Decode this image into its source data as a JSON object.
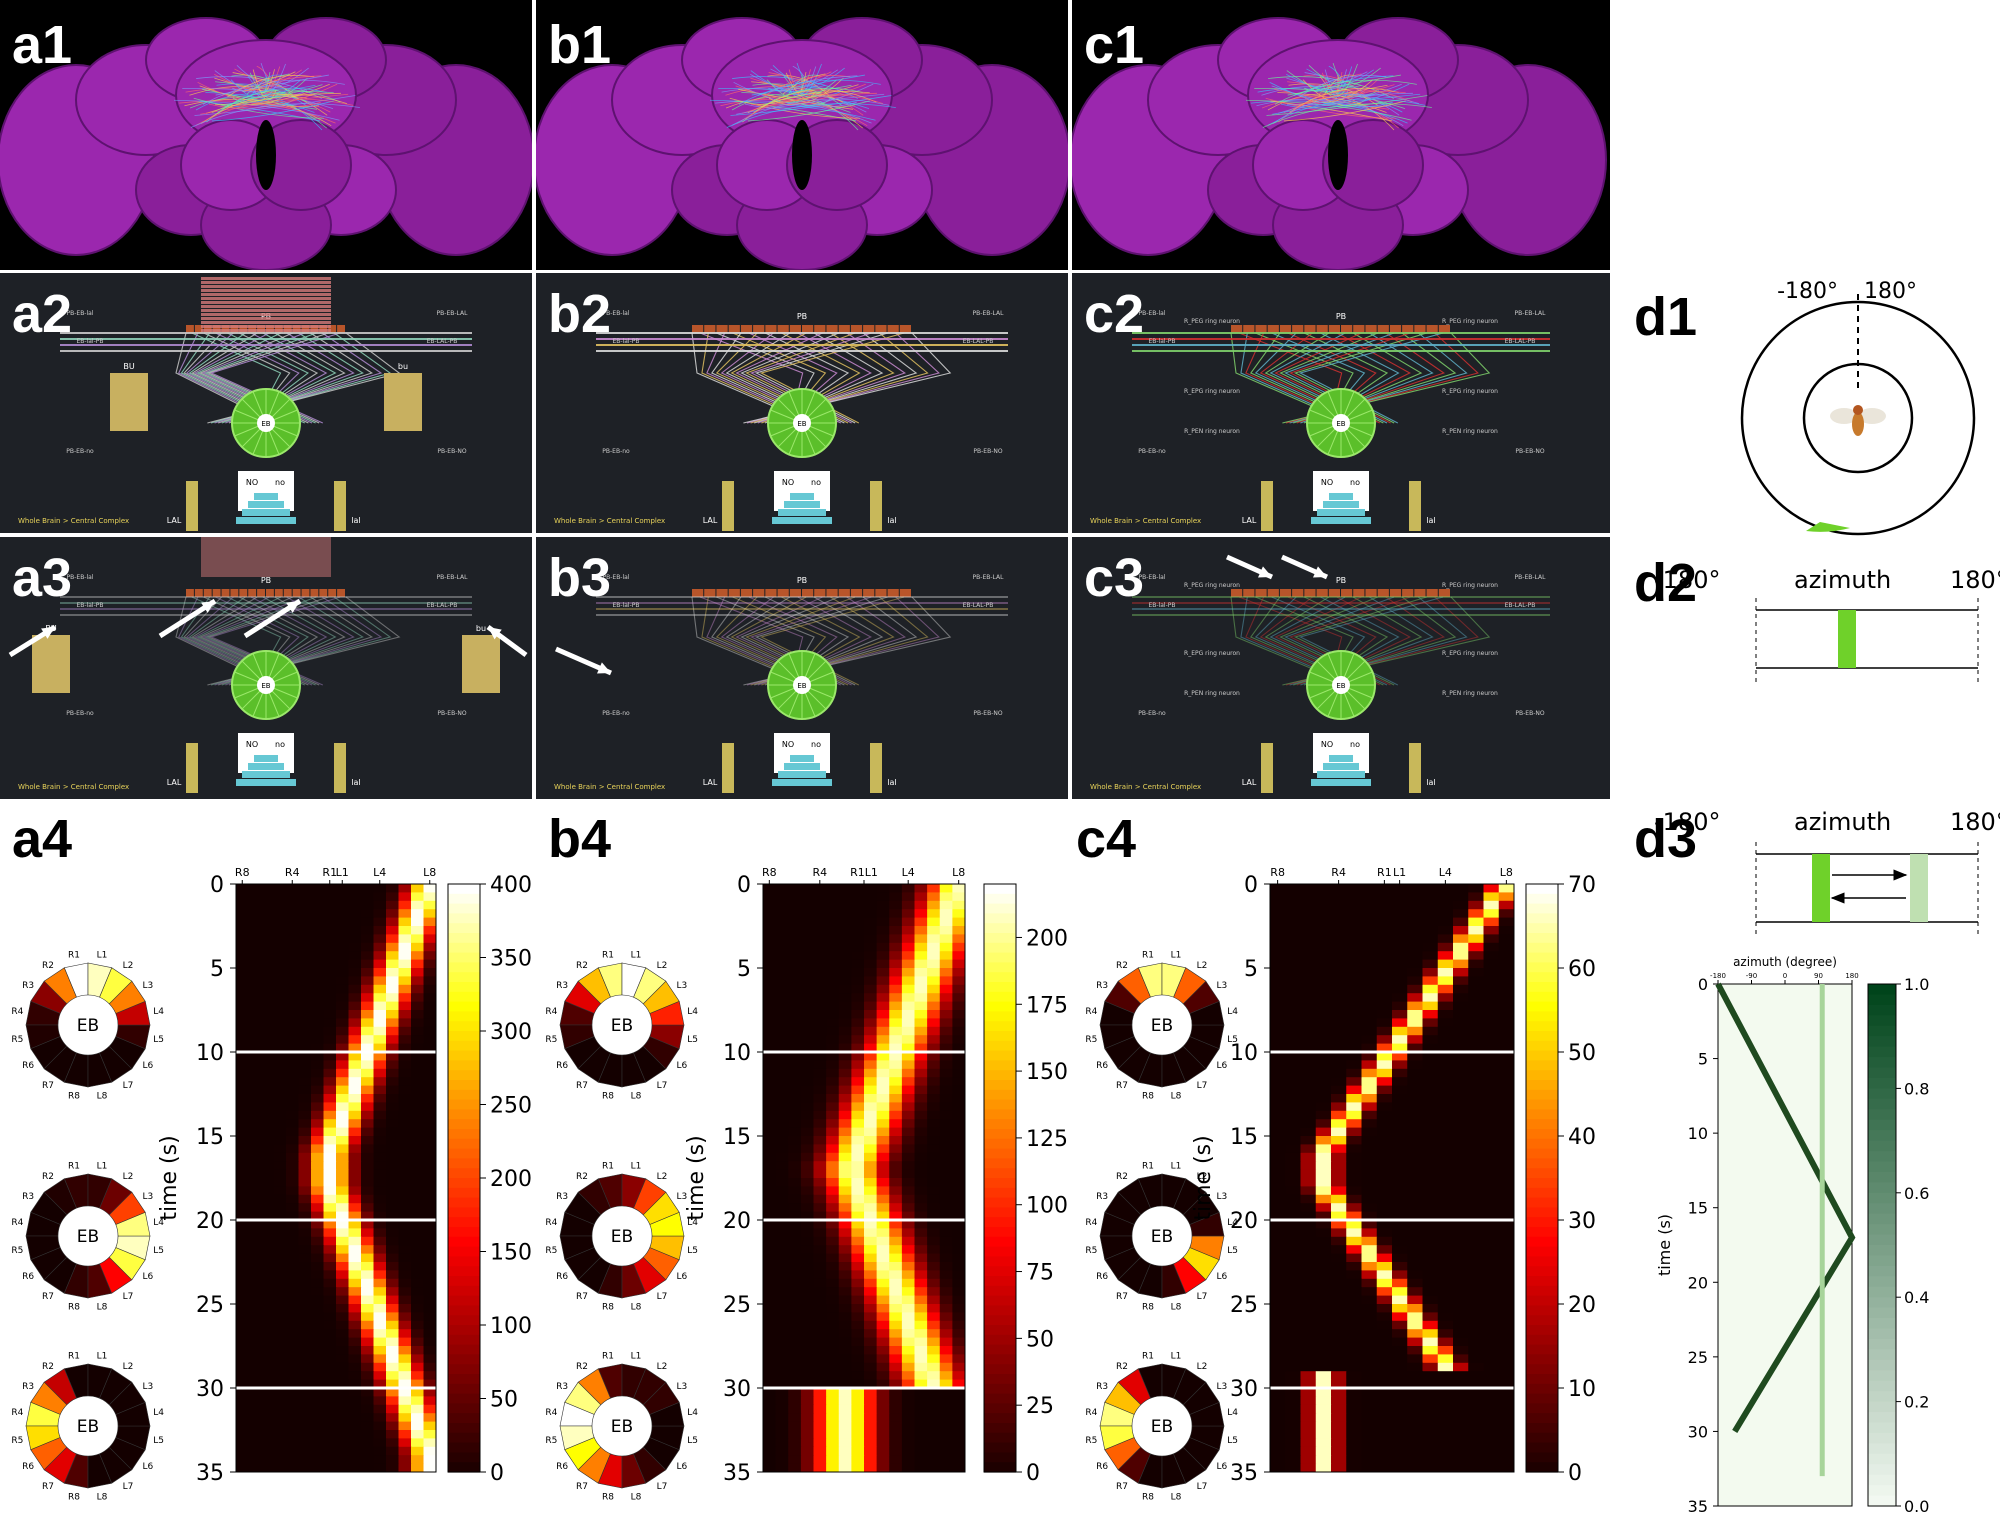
{
  "panels": {
    "a1": "a1",
    "b1": "b1",
    "c1": "c1",
    "a2": "a2",
    "b2": "b2",
    "c2": "c2",
    "a3": "a3",
    "b3": "b3",
    "c3": "c3",
    "a4": "a4",
    "b4": "b4",
    "c4": "c4",
    "d1": "d1",
    "d2": "d2",
    "d3": "d3"
  },
  "circuit": {
    "breadcrumb": "Whole Brain > Central Complex",
    "labels": {
      "PB": "PB",
      "EB": "EB",
      "NO": "NO",
      "no": "no",
      "LAL": "LAL",
      "lal": "lal",
      "BU": "BU",
      "bu": "bu",
      "PB_EB_lal": "PB-EB-lal",
      "PB_EB_LAL": "PB-EB-LAL",
      "PB_local": "PB local",
      "PB_EB_no": "PB-EB-no",
      "PB_EB_NO": "PB-EB-NO",
      "EB_LAL_PB": "EB-LAL-PB",
      "EB_lal_PB": "EB-lal-PB",
      "R_PEG": "R_PEG ring neuron",
      "R_EPG": "R_EPG ring neuron",
      "R_PEN": "R_PEN ring neuron"
    }
  },
  "eb_rings": {
    "center_label": "EB",
    "segments": [
      "R1",
      "R2",
      "R3",
      "R4",
      "R5",
      "R6",
      "R7",
      "R8",
      "L8",
      "L7",
      "L6",
      "L5",
      "L4",
      "L3",
      "L2",
      "L1"
    ],
    "a4": [
      [
        1.0,
        0.6,
        0.2,
        0.05,
        0.02,
        0.0,
        0.0,
        0.0,
        0.0,
        0.0,
        0.0,
        0.05,
        0.3,
        0.6,
        0.85,
        0.95
      ],
      [
        0.05,
        0.02,
        0.0,
        0.0,
        0.0,
        0.0,
        0.0,
        0.05,
        0.1,
        0.4,
        0.85,
        0.95,
        0.9,
        0.5,
        0.15,
        0.05
      ],
      [
        0.0,
        0.3,
        0.6,
        0.85,
        0.75,
        0.55,
        0.35,
        0.1,
        0.0,
        0.0,
        0.0,
        0.0,
        0.0,
        0.0,
        0.0,
        0.0
      ]
    ],
    "b4": [
      [
        0.9,
        0.7,
        0.35,
        0.1,
        0.05,
        0.0,
        0.0,
        0.0,
        0.0,
        0.0,
        0.05,
        0.2,
        0.45,
        0.7,
        0.9,
        1.0
      ],
      [
        0.1,
        0.05,
        0.0,
        0.0,
        0.0,
        0.0,
        0.0,
        0.05,
        0.15,
        0.35,
        0.55,
        0.7,
        0.8,
        0.75,
        0.5,
        0.2
      ],
      [
        0.1,
        0.6,
        0.9,
        1.0,
        0.95,
        0.8,
        0.6,
        0.35,
        0.15,
        0.05,
        0.0,
        0.0,
        0.0,
        0.05,
        0.05,
        0.05
      ]
    ],
    "c4": [
      [
        0.9,
        0.55,
        0.1,
        0.0,
        0.0,
        0.0,
        0.0,
        0.0,
        0.0,
        0.0,
        0.0,
        0.0,
        0.0,
        0.1,
        0.55,
        0.9
      ],
      [
        0.0,
        0.0,
        0.0,
        0.0,
        0.0,
        0.0,
        0.0,
        0.0,
        0.05,
        0.4,
        0.75,
        0.6,
        0.05,
        0.0,
        0.0,
        0.0
      ],
      [
        0.0,
        0.35,
        0.7,
        0.9,
        0.85,
        0.55,
        0.1,
        0.0,
        0.0,
        0.0,
        0.0,
        0.0,
        0.0,
        0.0,
        0.0,
        0.0
      ]
    ]
  },
  "d1": {
    "left_angle": "-180°",
    "right_angle": "180°"
  },
  "d2": {
    "left": "-180°",
    "title": "azimuth",
    "right": "180°"
  },
  "d3": {
    "left": "-180°",
    "title": "azimuth",
    "right": "180°"
  },
  "chart_data": [
    {
      "id": "a4",
      "type": "heatmap",
      "xticks": [
        "R8",
        "R4",
        "R1",
        "L1",
        "L4",
        "L8"
      ],
      "ylabel": "time (s)",
      "yticks": [
        0,
        5,
        10,
        15,
        20,
        25,
        30,
        35
      ],
      "ylim": [
        0,
        35
      ],
      "colorbar": {
        "ticks": [
          0,
          50,
          100,
          150,
          200,
          250,
          300,
          350,
          400
        ],
        "max": 400,
        "cmap": "hot"
      },
      "hlines": [
        10,
        20,
        30
      ],
      "bump": {
        "start_col": 15.5,
        "min_col": 7.5,
        "slope_cols_per_s": 0.5,
        "width": 1.1,
        "turn_time": 17
      }
    },
    {
      "id": "b4",
      "type": "heatmap",
      "xticks": [
        "R8",
        "R4",
        "R1L1",
        "L4",
        "L8"
      ],
      "ylabel": "time (s)",
      "yticks": [
        0,
        5,
        10,
        15,
        20,
        25,
        30,
        35
      ],
      "ylim": [
        0,
        35
      ],
      "colorbar": {
        "ticks": [
          0,
          25,
          50,
          75,
          100,
          125,
          150,
          175,
          200
        ],
        "max": 220,
        "cmap": "hot"
      },
      "hlines": [
        10,
        20,
        30
      ],
      "bump": {
        "start_col": 15.5,
        "min_col": 4.5,
        "slope_cols_per_s": 0.5,
        "width": 1.6,
        "turn_time": 17
      }
    },
    {
      "id": "c4",
      "type": "heatmap",
      "xticks": [
        "R8",
        "R4",
        "R1",
        "L1",
        "L4",
        "L8"
      ],
      "ylabel": "time (s)",
      "yticks": [
        0,
        5,
        10,
        15,
        20,
        25,
        30,
        35
      ],
      "ylim": [
        0,
        35
      ],
      "colorbar": {
        "ticks": [
          0,
          10,
          20,
          30,
          40,
          50,
          60,
          70
        ],
        "max": 70,
        "cmap": "hot"
      },
      "hlines": [
        10,
        20,
        30
      ],
      "bump": {
        "start_col": 15.5,
        "min_col": 3.5,
        "slope_cols_per_s": 0.75,
        "width": 0.6,
        "turn_time": 17
      }
    },
    {
      "id": "d3-plot",
      "type": "line",
      "title": "azimuth (degree)",
      "xticks": [
        -180,
        -90,
        0,
        90,
        180
      ],
      "ylabel": "time (s)",
      "yticks": [
        0,
        5,
        10,
        15,
        20,
        25,
        30,
        35
      ],
      "ylim": [
        0,
        35
      ],
      "series": [
        {
          "x": [
            -180,
            180,
            -135
          ],
          "t": [
            0,
            17,
            30
          ],
          "color": "#1f4a1f"
        },
        {
          "x": [
            100,
            100
          ],
          "t": [
            0,
            33
          ],
          "color": "#a7d49a"
        }
      ],
      "colorbar": {
        "ticks": [
          0.0,
          0.2,
          0.4,
          0.6,
          0.8,
          1.0
        ],
        "cmap": "greens"
      }
    }
  ]
}
